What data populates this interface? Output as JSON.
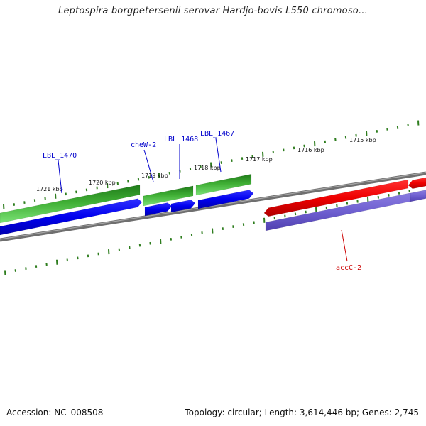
{
  "title": "Leptospira borgpetersenii serovar Hardjo-bovis L550 chromoso...",
  "accession": "Accession: NC_008508",
  "stats": "Topology: circular; Length: 3,614,446 bp; Genes: 2,745",
  "colors": {
    "tick": "#2e7d1e",
    "backbone": "#808080",
    "green_dark": "#2a8a22",
    "green_light": "#6fd86a",
    "blue": "#0000ee",
    "red": "#ee0000",
    "purple": "#7060d0",
    "label_blue": "#0000cc",
    "label_red": "#cc0000"
  },
  "scale_labels": [
    "1721 kbp",
    "1720 kbp",
    "1719 kbp",
    "1718 kbp",
    "1717 kbp",
    "1716 kbp",
    "1715 kbp"
  ],
  "gene_labels": [
    {
      "name": "LBL_1470",
      "color": "#0000cc"
    },
    {
      "name": "cheW-2",
      "color": "#0000cc"
    },
    {
      "name": "LBL_1468",
      "color": "#0000cc"
    },
    {
      "name": "LBL_1467",
      "color": "#0000cc"
    },
    {
      "name": "accC-2",
      "color": "#cc0000"
    }
  ]
}
